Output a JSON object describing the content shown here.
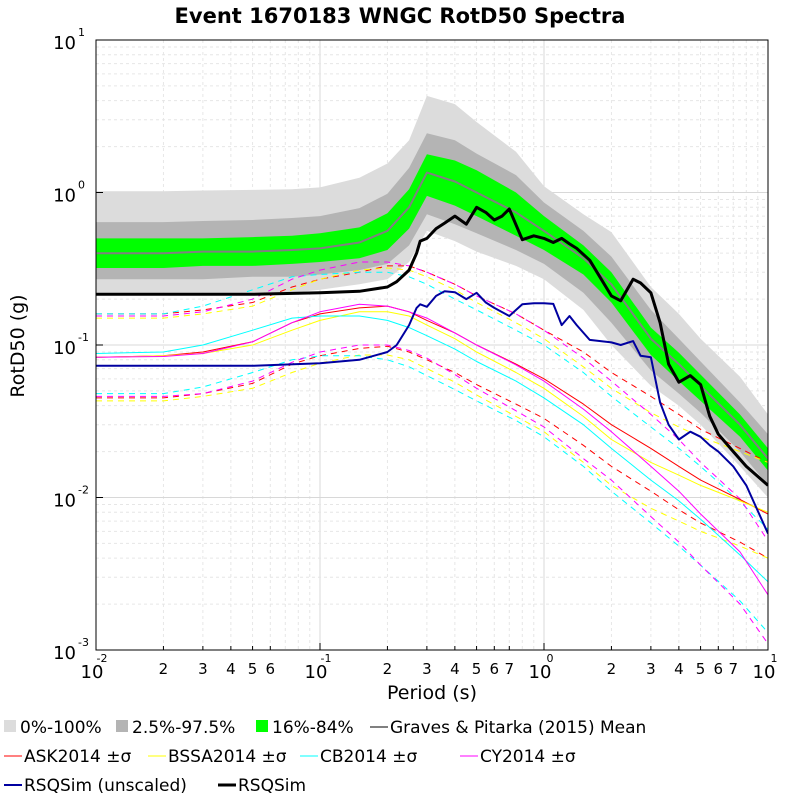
{
  "chart_data": {
    "type": "line",
    "title": "Event 1670183 WNGC RotD50 Spectra",
    "xlabel": "Period (s)",
    "ylabel": "RotD50 (g)",
    "xscale": "log",
    "yscale": "log",
    "xlim": [
      0.01,
      10
    ],
    "ylim": [
      0.001,
      10
    ],
    "grid": true,
    "legend_position": "bottom",
    "x_major_ticks": [
      {
        "value": 0.01,
        "base": "10",
        "exp": "-2"
      },
      {
        "value": 0.1,
        "base": "10",
        "exp": "-1"
      },
      {
        "value": 1,
        "base": "10",
        "exp": "0"
      },
      {
        "value": 10,
        "base": "10",
        "exp": "1"
      }
    ],
    "x_minor_ticks": [
      {
        "value": 0.02,
        "label": "2"
      },
      {
        "value": 0.03,
        "label": "3"
      },
      {
        "value": 0.04,
        "label": "4"
      },
      {
        "value": 0.05,
        "label": "5"
      },
      {
        "value": 0.06,
        "label": "6"
      },
      {
        "value": 0.2,
        "label": "2"
      },
      {
        "value": 0.3,
        "label": "3"
      },
      {
        "value": 0.4,
        "label": "4"
      },
      {
        "value": 0.5,
        "label": "5"
      },
      {
        "value": 0.6,
        "label": "6"
      },
      {
        "value": 0.7,
        "label": "7"
      },
      {
        "value": 2,
        "label": "2"
      },
      {
        "value": 3,
        "label": "3"
      },
      {
        "value": 4,
        "label": "4"
      },
      {
        "value": 5,
        "label": "5"
      },
      {
        "value": 6,
        "label": "6"
      },
      {
        "value": 7,
        "label": "7"
      }
    ],
    "y_major_ticks": [
      {
        "value": 0.001,
        "base": "10",
        "exp": "-3"
      },
      {
        "value": 0.01,
        "base": "10",
        "exp": "-2"
      },
      {
        "value": 0.1,
        "base": "10",
        "exp": "-1"
      },
      {
        "value": 1,
        "base": "10",
        "exp": "0"
      },
      {
        "value": 10,
        "base": "10",
        "exp": "1"
      }
    ],
    "periods": [
      0.01,
      0.02,
      0.03,
      0.05,
      0.075,
      0.1,
      0.15,
      0.2,
      0.25,
      0.3,
      0.4,
      0.5,
      0.75,
      1.0,
      1.5,
      2.0,
      3.0,
      4.0,
      5.0,
      7.5,
      10.0
    ],
    "bands": [
      {
        "name": "0%-100%",
        "color": "#dcdcdc",
        "lower": [
          0.22,
          0.22,
          0.22,
          0.22,
          0.22,
          0.23,
          0.25,
          0.27,
          0.35,
          0.56,
          0.48,
          0.41,
          0.33,
          0.27,
          0.17,
          0.1,
          0.054,
          0.04,
          0.03,
          0.016,
          0.01
        ],
        "upper": [
          1.02,
          1.02,
          1.03,
          1.04,
          1.05,
          1.08,
          1.25,
          1.55,
          2.2,
          4.3,
          3.8,
          2.9,
          1.85,
          1.1,
          0.72,
          0.55,
          0.24,
          0.16,
          0.11,
          0.062,
          0.035
        ]
      },
      {
        "name": "2.5%-97.5%",
        "color": "#b4b4b4",
        "lower": [
          0.27,
          0.27,
          0.27,
          0.28,
          0.28,
          0.29,
          0.31,
          0.34,
          0.45,
          0.72,
          0.62,
          0.54,
          0.42,
          0.34,
          0.22,
          0.14,
          0.068,
          0.048,
          0.036,
          0.02,
          0.012
        ],
        "upper": [
          0.64,
          0.64,
          0.65,
          0.66,
          0.68,
          0.7,
          0.79,
          0.98,
          1.45,
          2.45,
          2.2,
          1.8,
          1.3,
          0.86,
          0.56,
          0.38,
          0.17,
          0.11,
          0.078,
          0.042,
          0.026
        ]
      },
      {
        "name": "16%-84%",
        "color": "#00ff00",
        "lower": [
          0.32,
          0.32,
          0.33,
          0.33,
          0.34,
          0.35,
          0.37,
          0.42,
          0.58,
          0.95,
          0.82,
          0.7,
          0.52,
          0.42,
          0.29,
          0.19,
          0.086,
          0.058,
          0.043,
          0.025,
          0.015
        ],
        "upper": [
          0.5,
          0.5,
          0.5,
          0.51,
          0.52,
          0.54,
          0.59,
          0.73,
          1.05,
          1.78,
          1.62,
          1.4,
          1.0,
          0.7,
          0.45,
          0.3,
          0.13,
          0.089,
          0.064,
          0.035,
          0.021
        ]
      }
    ],
    "series": [
      {
        "name": "Graves & Pitarka (2015) Mean",
        "color": "#808080",
        "style": "solid",
        "width": 2,
        "values": [
          0.4,
          0.4,
          0.41,
          0.41,
          0.42,
          0.43,
          0.47,
          0.56,
          0.8,
          1.35,
          1.18,
          1.0,
          0.74,
          0.56,
          0.37,
          0.25,
          0.11,
          0.075,
          0.054,
          0.03,
          0.018
        ]
      },
      {
        "name": "ASK2014 ±σ",
        "color": "#ff0000",
        "style": "solid",
        "width": 1,
        "values": [
          0.083,
          0.085,
          0.09,
          0.105,
          0.14,
          0.16,
          0.175,
          0.18,
          0.165,
          0.145,
          0.12,
          0.1,
          0.075,
          0.06,
          0.041,
          0.03,
          0.021,
          0.016,
          0.013,
          0.0097,
          0.0078
        ]
      },
      {
        "name": "BSSA2014 ±σ",
        "color": "#ffff00",
        "style": "solid",
        "width": 1,
        "values": [
          0.083,
          0.085,
          0.088,
          0.1,
          0.125,
          0.145,
          0.165,
          0.165,
          0.155,
          0.135,
          0.11,
          0.09,
          0.066,
          0.052,
          0.034,
          0.024,
          0.017,
          0.014,
          0.012,
          0.0095,
          0.008
        ]
      },
      {
        "name": "CB2014 ±σ",
        "color": "#00ffff",
        "style": "solid",
        "width": 1,
        "values": [
          0.088,
          0.09,
          0.1,
          0.125,
          0.15,
          0.155,
          0.155,
          0.145,
          0.13,
          0.115,
          0.094,
          0.078,
          0.058,
          0.045,
          0.03,
          0.021,
          0.013,
          0.0095,
          0.0072,
          0.0042,
          0.0028
        ]
      },
      {
        "name": "CY2014 ±σ",
        "color": "#ff00ff",
        "style": "solid",
        "width": 1,
        "values": [
          0.083,
          0.084,
          0.088,
          0.105,
          0.14,
          0.165,
          0.185,
          0.18,
          0.165,
          0.15,
          0.12,
          0.1,
          0.074,
          0.058,
          0.038,
          0.027,
          0.016,
          0.011,
          0.0078,
          0.0044,
          0.0023
        ]
      },
      {
        "name": "RSQSim (unscaled)",
        "color": "#0000a0",
        "style": "solid",
        "width": 2,
        "x": [
          0.01,
          0.05,
          0.1,
          0.15,
          0.2,
          0.22,
          0.25,
          0.27,
          0.28,
          0.3,
          0.33,
          0.36,
          0.4,
          0.45,
          0.5,
          0.55,
          0.6,
          0.7,
          0.8,
          0.9,
          1.0,
          1.1,
          1.2,
          1.3,
          1.4,
          1.6,
          2.0,
          2.2,
          2.5,
          2.7,
          3.0,
          3.3,
          3.6,
          4.0,
          4.5,
          5.0,
          5.5,
          6.0,
          7.0,
          8.0,
          10.0
        ],
        "values": [
          0.073,
          0.073,
          0.076,
          0.08,
          0.09,
          0.1,
          0.135,
          0.175,
          0.185,
          0.178,
          0.21,
          0.225,
          0.222,
          0.2,
          0.22,
          0.19,
          0.175,
          0.155,
          0.185,
          0.188,
          0.188,
          0.186,
          0.135,
          0.155,
          0.135,
          0.108,
          0.104,
          0.1,
          0.106,
          0.085,
          0.083,
          0.042,
          0.03,
          0.024,
          0.027,
          0.025,
          0.022,
          0.02,
          0.016,
          0.012,
          0.0058
        ]
      },
      {
        "name": "RSQSim",
        "color": "#000000",
        "style": "solid",
        "width": 3,
        "x": [
          0.01,
          0.05,
          0.1,
          0.15,
          0.2,
          0.22,
          0.25,
          0.27,
          0.28,
          0.3,
          0.33,
          0.36,
          0.4,
          0.45,
          0.5,
          0.55,
          0.6,
          0.65,
          0.7,
          0.8,
          0.9,
          1.0,
          1.1,
          1.2,
          1.3,
          1.4,
          1.6,
          2.0,
          2.2,
          2.5,
          2.7,
          3.0,
          3.3,
          3.6,
          4.0,
          4.5,
          5.0,
          5.5,
          6.0,
          7.0,
          8.0,
          10.0
        ],
        "values": [
          0.215,
          0.215,
          0.22,
          0.225,
          0.24,
          0.26,
          0.31,
          0.4,
          0.48,
          0.5,
          0.58,
          0.63,
          0.7,
          0.62,
          0.8,
          0.74,
          0.66,
          0.7,
          0.78,
          0.49,
          0.52,
          0.5,
          0.47,
          0.5,
          0.46,
          0.43,
          0.36,
          0.21,
          0.195,
          0.27,
          0.255,
          0.22,
          0.14,
          0.075,
          0.057,
          0.063,
          0.055,
          0.034,
          0.026,
          0.02,
          0.016,
          0.012
        ]
      }
    ],
    "dashed_sigma": [
      {
        "color": "#ff0000",
        "upper": [
          0.16,
          0.16,
          0.17,
          0.19,
          0.24,
          0.27,
          0.3,
          0.33,
          0.33,
          0.3,
          0.25,
          0.21,
          0.16,
          0.125,
          0.09,
          0.066,
          0.046,
          0.035,
          0.028,
          0.021,
          0.017
        ],
        "lower": [
          0.045,
          0.045,
          0.048,
          0.056,
          0.075,
          0.085,
          0.095,
          0.098,
          0.09,
          0.08,
          0.066,
          0.055,
          0.041,
          0.033,
          0.022,
          0.016,
          0.011,
          0.0083,
          0.0068,
          0.0051,
          0.004
        ]
      },
      {
        "color": "#ffff00",
        "upper": [
          0.15,
          0.15,
          0.16,
          0.18,
          0.23,
          0.27,
          0.31,
          0.32,
          0.31,
          0.28,
          0.23,
          0.19,
          0.14,
          0.11,
          0.072,
          0.052,
          0.036,
          0.029,
          0.025,
          0.02,
          0.017
        ],
        "lower": [
          0.043,
          0.043,
          0.046,
          0.052,
          0.066,
          0.076,
          0.086,
          0.086,
          0.08,
          0.07,
          0.057,
          0.047,
          0.034,
          0.027,
          0.017,
          0.012,
          0.0085,
          0.007,
          0.006,
          0.0048,
          0.004
        ]
      },
      {
        "color": "#00ffff",
        "upper": [
          0.16,
          0.16,
          0.18,
          0.23,
          0.28,
          0.29,
          0.3,
          0.3,
          0.28,
          0.25,
          0.2,
          0.17,
          0.125,
          0.1,
          0.066,
          0.046,
          0.029,
          0.021,
          0.016,
          0.0094,
          0.0062
        ],
        "lower": [
          0.048,
          0.048,
          0.053,
          0.066,
          0.08,
          0.085,
          0.085,
          0.08,
          0.072,
          0.063,
          0.051,
          0.043,
          0.032,
          0.025,
          0.016,
          0.011,
          0.0068,
          0.0048,
          0.0036,
          0.0021,
          0.0013
        ]
      },
      {
        "color": "#ff00ff",
        "upper": [
          0.155,
          0.155,
          0.165,
          0.2,
          0.27,
          0.31,
          0.35,
          0.35,
          0.33,
          0.3,
          0.25,
          0.21,
          0.16,
          0.125,
          0.082,
          0.058,
          0.035,
          0.024,
          0.017,
          0.0098,
          0.0052
        ],
        "lower": [
          0.046,
          0.046,
          0.048,
          0.058,
          0.077,
          0.09,
          0.1,
          0.1,
          0.092,
          0.082,
          0.064,
          0.052,
          0.037,
          0.029,
          0.018,
          0.013,
          0.0075,
          0.0051,
          0.0036,
          0.002,
          0.0011
        ]
      }
    ],
    "legend": [
      {
        "label": "0%-100%",
        "kind": "box",
        "color": "#dcdcdc"
      },
      {
        "label": "2.5%-97.5%",
        "kind": "box",
        "color": "#b4b4b4"
      },
      {
        "label": "16%-84%",
        "kind": "box",
        "color": "#00ff00"
      },
      {
        "label": "Graves & Pitarka (2015) Mean",
        "kind": "line",
        "color": "#808080",
        "width": 2
      },
      {
        "label": "ASK2014 ±σ",
        "kind": "line",
        "color": "#ff0000",
        "width": 1
      },
      {
        "label": "BSSA2014 ±σ",
        "kind": "line",
        "color": "#ffff00",
        "width": 1
      },
      {
        "label": "CB2014 ±σ",
        "kind": "line",
        "color": "#00ffff",
        "width": 1
      },
      {
        "label": "CY2014 ±σ",
        "kind": "line",
        "color": "#ff00ff",
        "width": 1
      },
      {
        "label": "RSQSim (unscaled)",
        "kind": "line",
        "color": "#0000a0",
        "width": 2
      },
      {
        "label": "RSQSim",
        "kind": "line",
        "color": "#000000",
        "width": 3
      }
    ]
  }
}
